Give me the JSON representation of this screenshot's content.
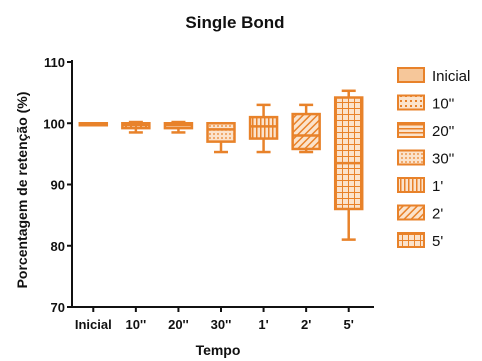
{
  "chart_data": {
    "type": "boxplot",
    "title": "Single Bond",
    "xlabel": "Tempo",
    "ylabel": "Porcentagem de retenção (%)",
    "ylim": [
      70,
      110
    ],
    "yticks": [
      "70",
      "80",
      "90",
      "100",
      "110"
    ],
    "categories": [
      "Inicial",
      "10''",
      "20''",
      "30''",
      "1'",
      "2'",
      "5'"
    ],
    "series": [
      {
        "name": "Inicial",
        "min": 100,
        "q1": 100,
        "median": 100,
        "q3": 100,
        "max": 100
      },
      {
        "name": "10''",
        "min": 98.5,
        "q1": 99.2,
        "median": 99.7,
        "q3": 100.0,
        "max": 100.2
      },
      {
        "name": "20''",
        "min": 98.5,
        "q1": 99.2,
        "median": 99.7,
        "q3": 100.0,
        "max": 100.2
      },
      {
        "name": "30''",
        "min": 95.3,
        "q1": 97.0,
        "median": 99.0,
        "q3": 100.0,
        "max": 100.0
      },
      {
        "name": "1'",
        "min": 95.3,
        "q1": 97.5,
        "median": 99.5,
        "q3": 101.0,
        "max": 103.0
      },
      {
        "name": "2'",
        "min": 95.3,
        "q1": 95.8,
        "median": 98.0,
        "q3": 101.5,
        "max": 103.0
      },
      {
        "name": "5'",
        "min": 81.0,
        "q1": 86.0,
        "median": 93.5,
        "q3": 104.2,
        "max": 105.3
      }
    ],
    "legend_entries": [
      "Inicial",
      "10''",
      "20''",
      "30''",
      "1'",
      "2'",
      "5'"
    ],
    "legend_position": "right",
    "colors": {
      "box": "#e8822a",
      "fill": "#f6c79a",
      "axis": "#111111"
    },
    "grid": false
  }
}
